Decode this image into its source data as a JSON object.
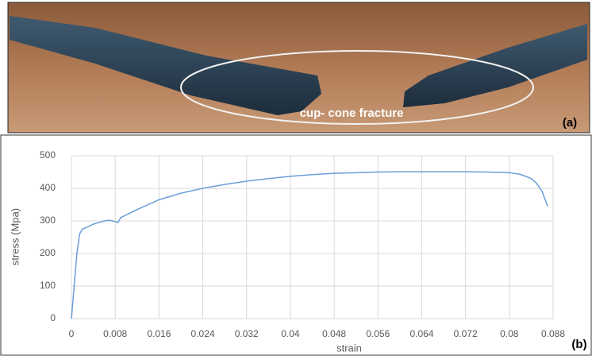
{
  "photo": {
    "caption": "cup- cone fracture",
    "label": "(a)"
  },
  "chart_data": {
    "type": "line",
    "panel_label": "(b)",
    "x_label": "strain",
    "y_label": "stress (Mpa)",
    "color": "#6a9fd8",
    "grid": true,
    "x": [
      0,
      0.0005,
      0.001,
      0.0015,
      0.002,
      0.003,
      0.004,
      0.005,
      0.006,
      0.007,
      0.008,
      0.0085,
      0.009,
      0.012,
      0.016,
      0.02,
      0.024,
      0.028,
      0.032,
      0.036,
      0.04,
      0.044,
      0.048,
      0.052,
      0.056,
      0.06,
      0.064,
      0.068,
      0.072,
      0.076,
      0.08,
      0.082,
      0.084,
      0.085,
      0.086,
      0.087
    ],
    "values": [
      0,
      100,
      200,
      260,
      275,
      282,
      290,
      295,
      300,
      302,
      298,
      295,
      310,
      335,
      365,
      385,
      400,
      412,
      422,
      430,
      437,
      442,
      446,
      448,
      450,
      451,
      451,
      451,
      451,
      450,
      448,
      443,
      430,
      415,
      390,
      345
    ],
    "xlim": [
      0,
      0.088
    ],
    "xticks": [
      0,
      0.008,
      0.016,
      0.024,
      0.032,
      0.04,
      0.048,
      0.056,
      0.064,
      0.072,
      0.08,
      0.088
    ],
    "ylim": [
      0,
      500
    ],
    "yticks": [
      0,
      100,
      200,
      300,
      400,
      500
    ]
  }
}
